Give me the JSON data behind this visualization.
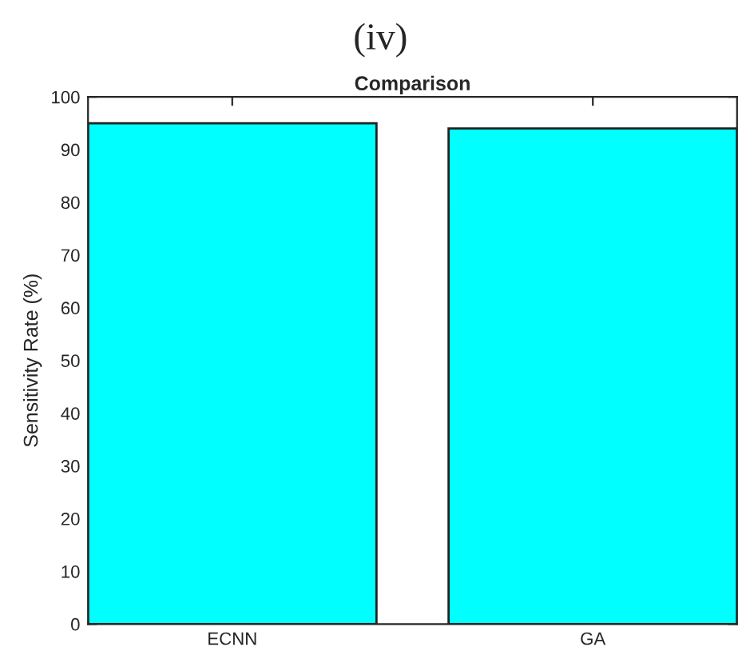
{
  "chart_data": {
    "type": "bar",
    "title": "(iv)",
    "subtitle": "Comparison",
    "ylabel": "Sensitivity Rate (%)",
    "categories": [
      "ECNN",
      "GA"
    ],
    "values": [
      95,
      94
    ],
    "color": "#00ffff",
    "ylim": [
      0,
      100
    ],
    "yticks": [
      0,
      10,
      20,
      30,
      40,
      50,
      60,
      70,
      80,
      90,
      100
    ],
    "grid": false
  }
}
